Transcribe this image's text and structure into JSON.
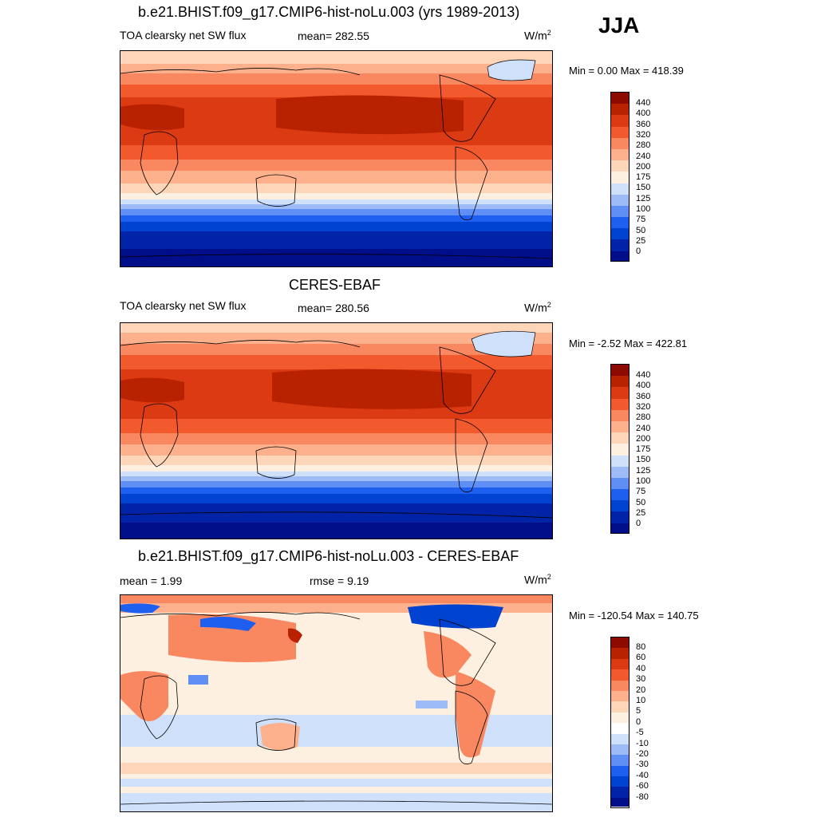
{
  "season": "JJA",
  "colors": {
    "abs_scale": [
      "#000e8a",
      "#0023a8",
      "#0043d0",
      "#1f5ff0",
      "#5f8ff5",
      "#9dbcf7",
      "#cfe0fa",
      "#fef0e1",
      "#fdd5b8",
      "#fcb08b",
      "#f98860",
      "#f25a2e",
      "#dc3a12",
      "#b82200",
      "#8c0a00"
    ],
    "diff_scale": [
      "#000e8a",
      "#0023a8",
      "#0043d0",
      "#1f5ff0",
      "#5f8ff5",
      "#9dbcf7",
      "#cfe0fa",
      "#ffffff",
      "#fef0e1",
      "#fdd5b8",
      "#fcb08b",
      "#f98860",
      "#f25a2e",
      "#dc3a12",
      "#b82200",
      "#8c0a00"
    ]
  },
  "panels": [
    {
      "title": "b.e21.BHIST.f09_g17.CMIP6-hist-noLu.003 (yrs 1989-2013)",
      "left_label": "TOA clearsky net SW flux",
      "mean_label": "mean= 282.55",
      "units": "W/m",
      "units_sup": "2",
      "minmax": "Min =   0.00 Max = 418.39",
      "ticks": [
        "440",
        "400",
        "360",
        "320",
        "280",
        "240",
        "200",
        "175",
        "150",
        "125",
        "100",
        "75",
        "50",
        "25",
        "0"
      ]
    },
    {
      "title": "CERES-EBAF",
      "left_label": "TOA clearsky net SW flux",
      "mean_label": "mean= 280.56",
      "units": "W/m",
      "units_sup": "2",
      "minmax": "Min =  -2.52 Max = 422.81",
      "ticks": [
        "440",
        "400",
        "360",
        "320",
        "280",
        "240",
        "200",
        "175",
        "150",
        "125",
        "100",
        "75",
        "50",
        "25",
        "0"
      ]
    },
    {
      "title": "b.e21.BHIST.f09_g17.CMIP6-hist-noLu.003 - CERES-EBAF",
      "left_label": "mean =   1.99",
      "mean_label": "rmse =   9.19",
      "units": "W/m",
      "units_sup": "2",
      "minmax": "Min = -120.54 Max = 140.75",
      "ticks": [
        "80",
        "60",
        "40",
        "30",
        "20",
        "10",
        "5",
        "0",
        "-5",
        "-10",
        "-20",
        "-30",
        "-40",
        "-60",
        "-80"
      ]
    }
  ]
}
